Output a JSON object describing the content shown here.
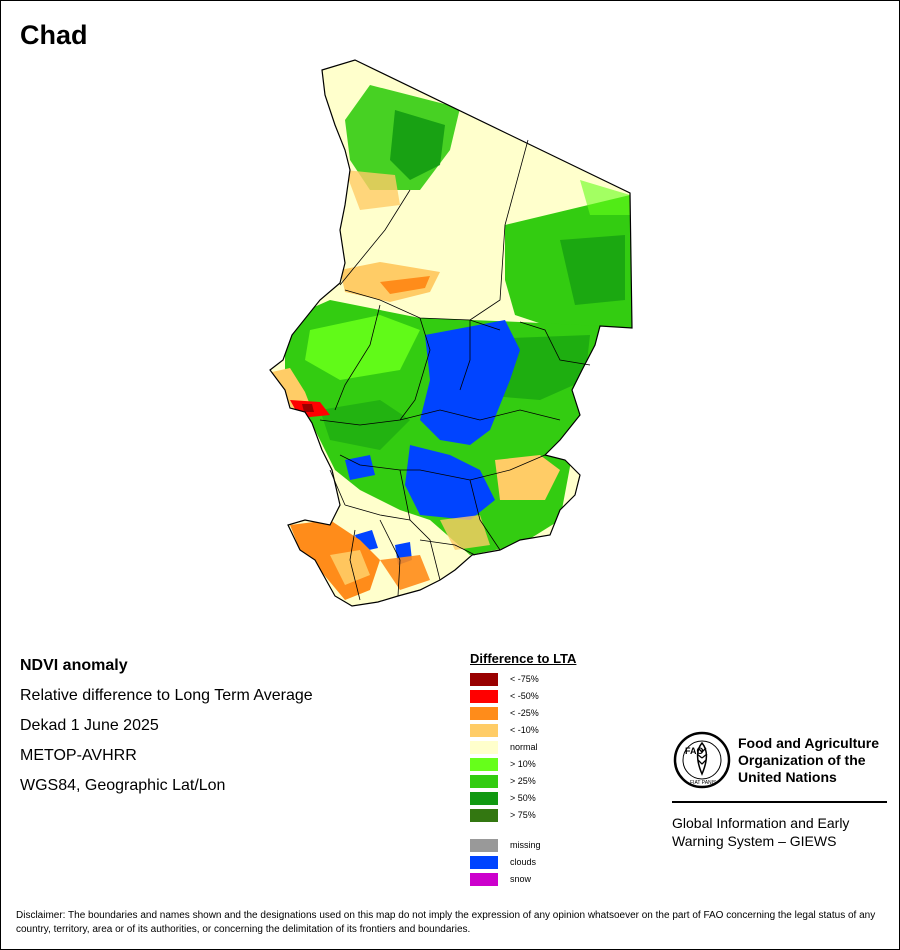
{
  "title": "Chad",
  "info": {
    "line1": "NDVI anomaly",
    "line2": "Relative difference to Long Term Average",
    "line3": "Dekad 1 June 2025",
    "line4": "METOP-AVHRR",
    "line5": "WGS84, Geographic Lat/Lon"
  },
  "legend": {
    "title": "Difference to LTA",
    "classes": [
      {
        "label": "< -75%",
        "color": "#990000"
      },
      {
        "label": "< -50%",
        "color": "#ff0000"
      },
      {
        "label": "< -25%",
        "color": "#ff8c1a"
      },
      {
        "label": "< -10%",
        "color": "#ffcc66"
      },
      {
        "label": "normal",
        "color": "#ffffcc"
      },
      {
        "label": "> 10%",
        "color": "#66ff1a"
      },
      {
        "label": "> 25%",
        "color": "#33cc11"
      },
      {
        "label": "> 50%",
        "color": "#119911"
      },
      {
        "label": "> 75%",
        "color": "#337711"
      }
    ],
    "special": [
      {
        "label": "missing",
        "color": "#999999"
      },
      {
        "label": "clouds",
        "color": "#0044ff"
      },
      {
        "label": "snow",
        "color": "#cc00cc"
      }
    ]
  },
  "fao": {
    "org_line1": "Food and Agriculture",
    "org_line2": "Organization of the",
    "org_line3": "United Nations",
    "logo_text": "FAO",
    "motto": "FIAT PANIS",
    "giews_line1": "Global Information and Early",
    "giews_line2": "Warning System – GIEWS"
  },
  "disclaimer": "Disclaimer: The boundaries and names shown and the designations used on this map do not imply the expression of any opinion whatsoever on the part of FAO concerning the legal status of any country, territory, area or of its authorities, or concerning the delimitation of its frontiers and boundaries."
}
